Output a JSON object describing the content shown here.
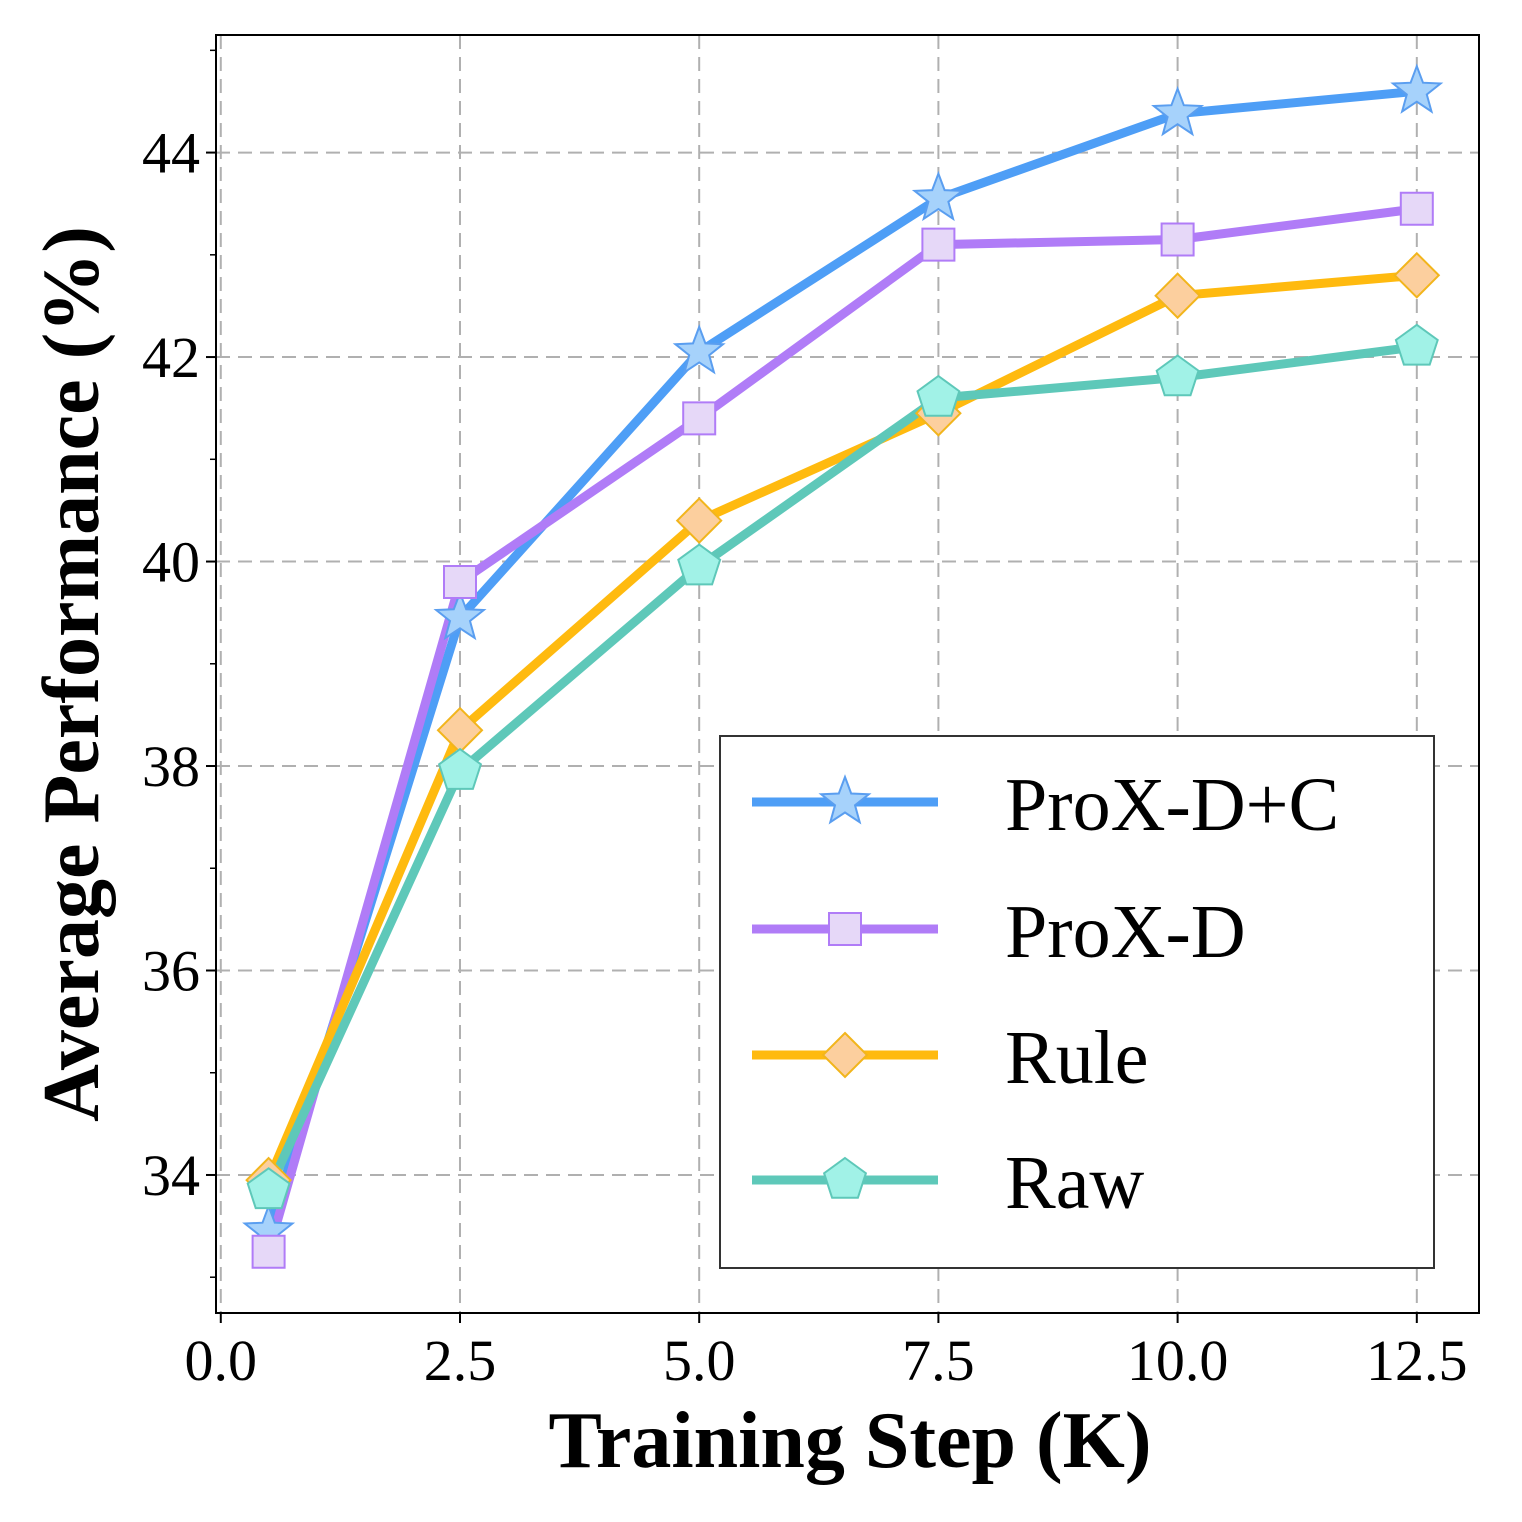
{
  "chart_data": {
    "type": "line",
    "title": "",
    "xlabel": "Training Step (K)",
    "ylabel": "Average Performance (%)",
    "xlim": [
      -0.05,
      13.15
    ],
    "ylim": [
      32.65,
      45.15
    ],
    "xticks": [
      0.0,
      2.5,
      5.0,
      7.5,
      10.0,
      12.5
    ],
    "xtick_labels": [
      "0.0",
      "2.5",
      "5.0",
      "7.5",
      "10.0",
      "12.5"
    ],
    "yticks": [
      34,
      36,
      38,
      40,
      42,
      44
    ],
    "ytick_labels": [
      "34",
      "36",
      "38",
      "40",
      "42",
      "44"
    ],
    "minor_yticks": [
      33,
      35,
      37,
      39,
      41,
      43,
      45
    ],
    "grid": true,
    "legend_position": "bottom-right",
    "x": [
      0.5,
      2.5,
      5.0,
      7.5,
      10.0,
      12.5
    ],
    "series": [
      {
        "name": "ProX-D+C",
        "values": [
          33.45,
          39.45,
          42.05,
          43.55,
          44.38,
          44.6
        ],
        "color": "#4e9ef6",
        "marker": "star",
        "marker_fill": "#a6d2fb",
        "marker_edge": "#5a9ef0"
      },
      {
        "name": "ProX-D",
        "values": [
          33.25,
          39.8,
          41.4,
          43.1,
          43.15,
          43.45
        ],
        "color": "#b07cf7",
        "marker": "square",
        "marker_fill": "#e6d8f8",
        "marker_edge": "#b07cf7"
      },
      {
        "name": "Rule",
        "values": [
          33.95,
          38.35,
          40.4,
          41.45,
          42.6,
          42.8
        ],
        "color": "#ffba0f",
        "marker": "diamond",
        "marker_fill": "#fccf9e",
        "marker_edge": "#f2b51c"
      },
      {
        "name": "Raw",
        "values": [
          33.85,
          37.95,
          39.95,
          41.6,
          41.8,
          42.1
        ],
        "color": "#5ec8b9",
        "marker": "pentagon",
        "marker_fill": "#a1f2e7",
        "marker_edge": "#5ec8b9"
      }
    ]
  }
}
